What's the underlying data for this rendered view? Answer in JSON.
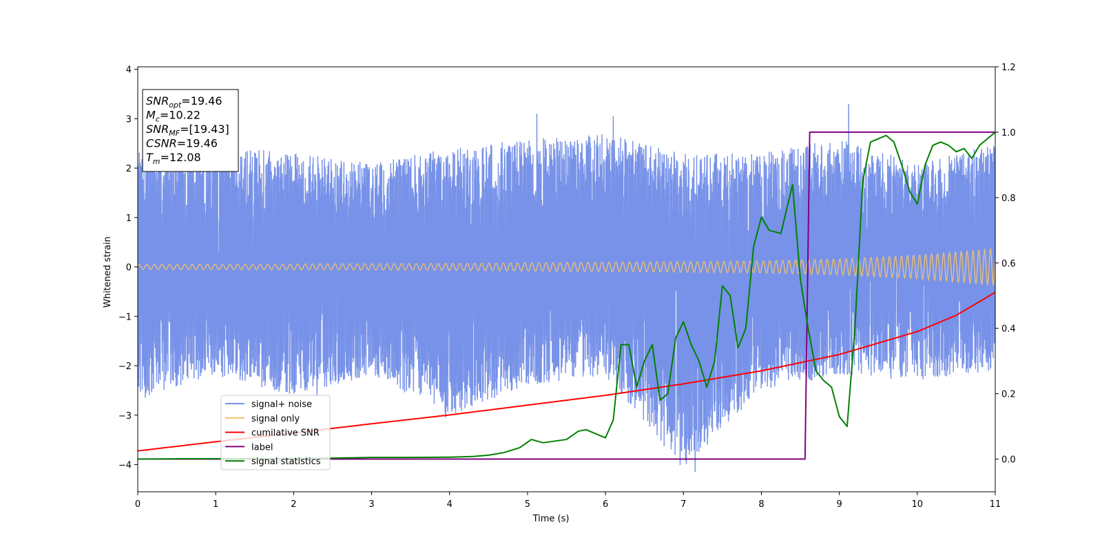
{
  "chart_data": {
    "type": "line",
    "title": "",
    "xlabel": "Time (s)",
    "ylabel": "Whitened strain",
    "xlim": [
      0,
      11
    ],
    "ylim": [
      -4.55,
      4.05
    ],
    "ylim_right": [
      -0.1,
      1.2
    ],
    "xticks": [
      "0",
      "1",
      "2",
      "3",
      "4",
      "5",
      "6",
      "7",
      "8",
      "9",
      "10",
      "11"
    ],
    "yticks": [
      "−4",
      "−3",
      "−2",
      "−1",
      "0",
      "1",
      "2",
      "3",
      "4"
    ],
    "yticks_right": [
      "0.0",
      "0.2",
      "0.4",
      "0.6",
      "0.8",
      "1.0",
      "1.2"
    ],
    "grid": false,
    "legend_position": "lower-left",
    "stats_box": {
      "lines": [
        {
          "sym": "SNR",
          "sub": "opt",
          "val": "=19.46"
        },
        {
          "sym": "M",
          "sub": "c",
          "val": "=10.22"
        },
        {
          "sym": "SNR",
          "sub": "MF",
          "val": "=[19.43]"
        },
        {
          "sym": "CSNR",
          "sub": "",
          "val": "=19.46"
        },
        {
          "sym": "T",
          "sub": "m",
          "val": "=12.08"
        }
      ]
    },
    "series": [
      {
        "name": "signal+ noise",
        "color": "#7792e8",
        "axis": "left",
        "envelope": {
          "x": [
            0,
            1,
            2,
            3,
            4,
            5,
            6,
            7,
            8,
            9,
            10,
            11
          ],
          "upper": [
            2.4,
            2.5,
            2.3,
            2.1,
            2.4,
            2.6,
            2.7,
            2.3,
            2.3,
            2.6,
            2.1,
            2.5
          ],
          "lower": [
            -2.7,
            -2.2,
            -2.6,
            -2.2,
            -3.0,
            -2.4,
            -2.2,
            -4.1,
            -2.5,
            -2.2,
            -2.3,
            -2.1
          ]
        },
        "peaks": [
          [
            5.12,
            3.1
          ],
          [
            6.1,
            3.05
          ],
          [
            9.12,
            3.3
          ],
          [
            7.15,
            -4.15
          ],
          [
            3.95,
            -3.05
          ],
          [
            2.3,
            -2.6
          ]
        ]
      },
      {
        "name": "signal only",
        "color": "#f5c26b",
        "axis": "left",
        "amplitude": {
          "x": [
            0,
            4,
            8,
            9,
            10,
            11
          ],
          "y": [
            0.05,
            0.07,
            0.12,
            0.16,
            0.24,
            0.37
          ]
        }
      },
      {
        "name": "cumilative SNR",
        "color": "#ff0000",
        "axis": "right",
        "x": [
          0,
          1,
          2,
          3,
          4,
          5,
          6,
          7,
          8,
          9,
          10,
          10.5,
          11
        ],
        "y": [
          0.025,
          0.053,
          0.08,
          0.108,
          0.135,
          0.165,
          0.195,
          0.23,
          0.27,
          0.32,
          0.39,
          0.44,
          0.51
        ]
      },
      {
        "name": "label",
        "color": "#800080",
        "axis": "right",
        "x": [
          0,
          8.56,
          8.62,
          11
        ],
        "y": [
          0.0,
          0.0,
          1.0,
          1.0
        ]
      },
      {
        "name": "signal statistics",
        "color": "#008000",
        "axis": "right",
        "x": [
          0,
          0.5,
          1.0,
          1.5,
          2.0,
          2.5,
          3.0,
          3.5,
          4.0,
          4.3,
          4.5,
          4.7,
          4.9,
          5.05,
          5.2,
          5.35,
          5.5,
          5.65,
          5.75,
          5.9,
          6.0,
          6.1,
          6.2,
          6.3,
          6.4,
          6.5,
          6.6,
          6.7,
          6.8,
          6.9,
          7.0,
          7.1,
          7.2,
          7.3,
          7.4,
          7.5,
          7.6,
          7.7,
          7.8,
          7.9,
          8.0,
          8.1,
          8.25,
          8.4,
          8.5,
          8.6,
          8.7,
          8.8,
          8.9,
          9.0,
          9.1,
          9.2,
          9.3,
          9.4,
          9.5,
          9.6,
          9.7,
          9.8,
          9.9,
          10.0,
          10.1,
          10.2,
          10.3,
          10.4,
          10.5,
          10.6,
          10.7,
          10.8,
          10.9,
          11.0
        ],
        "y": [
          0.0,
          0.001,
          0.001,
          0.001,
          0.002,
          0.003,
          0.005,
          0.005,
          0.006,
          0.008,
          0.012,
          0.02,
          0.035,
          0.06,
          0.05,
          0.055,
          0.06,
          0.085,
          0.09,
          0.075,
          0.065,
          0.12,
          0.35,
          0.35,
          0.22,
          0.3,
          0.35,
          0.18,
          0.2,
          0.37,
          0.42,
          0.35,
          0.3,
          0.22,
          0.3,
          0.53,
          0.5,
          0.34,
          0.4,
          0.65,
          0.74,
          0.7,
          0.69,
          0.84,
          0.55,
          0.4,
          0.27,
          0.24,
          0.22,
          0.13,
          0.1,
          0.4,
          0.85,
          0.97,
          0.98,
          0.99,
          0.97,
          0.9,
          0.82,
          0.78,
          0.9,
          0.96,
          0.97,
          0.96,
          0.94,
          0.95,
          0.92,
          0.96,
          0.98,
          1.0
        ]
      }
    ]
  }
}
